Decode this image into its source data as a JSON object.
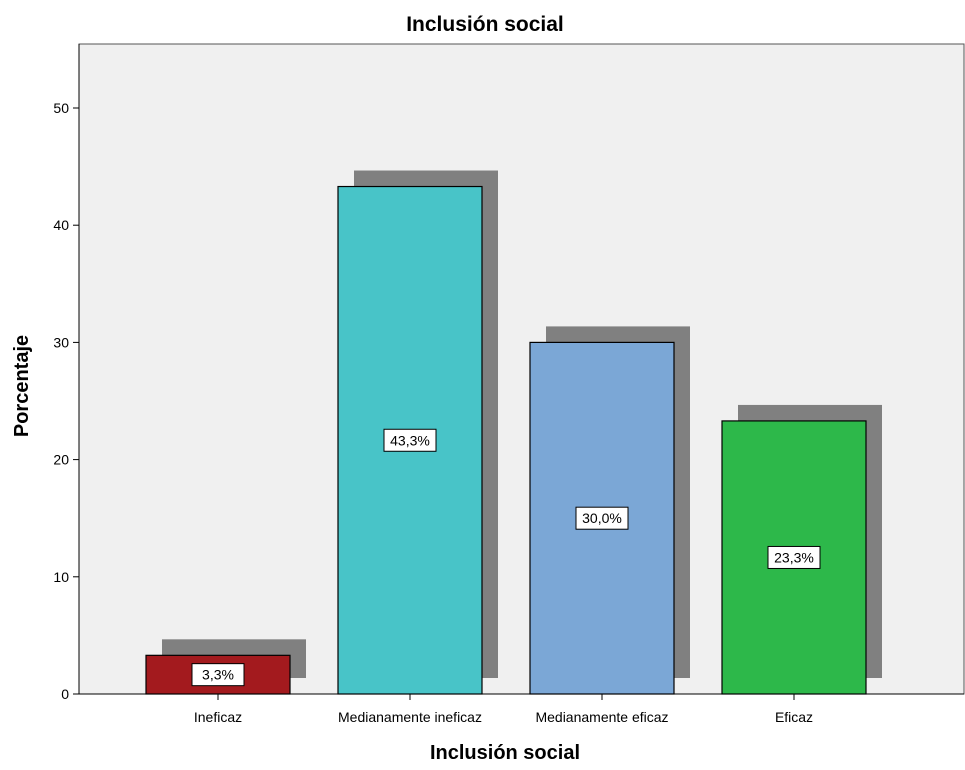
{
  "chart_data": {
    "type": "bar",
    "title": "Inclusión social",
    "xlabel": "Inclusión social",
    "ylabel": "Porcentaje",
    "categories": [
      "Ineficaz",
      "Medianamente ineficaz",
      "Medianamente eficaz",
      "Eficaz"
    ],
    "values": [
      3.3,
      43.3,
      30.0,
      23.3
    ],
    "data_labels": [
      "3,3%",
      "43,3%",
      "30,0%",
      "23,3%"
    ],
    "colors": [
      "#a31a1e",
      "#48c4c8",
      "#7ba7d6",
      "#2db84a"
    ],
    "shadow_color": "#808080",
    "background_color": "#f0f0f0",
    "ylim": [
      0,
      55
    ],
    "yticks": [
      0,
      10,
      20,
      30,
      40,
      50
    ],
    "ytick_labels": [
      "0",
      "10",
      "20",
      "30",
      "40",
      "50"
    ],
    "grid": false,
    "legend": "none"
  }
}
